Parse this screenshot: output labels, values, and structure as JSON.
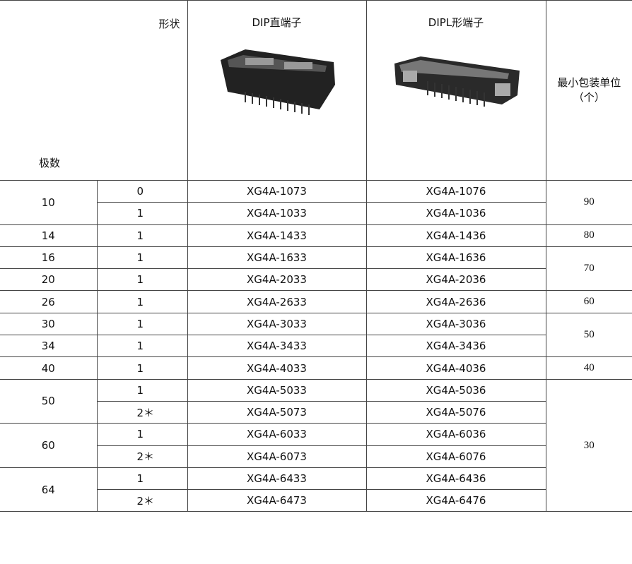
{
  "header": {
    "shape": "形状",
    "poles": "极数",
    "dip": "DIP直端子",
    "dipl": "DIPL形端子",
    "packing_unit": "最小包装单位",
    "packing_unit_suffix": "（个）"
  },
  "packing_groups": [
    {
      "unit": "90",
      "pole_groups": [
        {
          "poles": "10",
          "variants": [
            {
              "shape": "0",
              "dip": "XG4A-1073",
              "dipl": "XG4A-1076"
            },
            {
              "shape": "1",
              "dip": "XG4A-1033",
              "dipl": "XG4A-1036"
            }
          ]
        }
      ]
    },
    {
      "unit": "80",
      "pole_groups": [
        {
          "poles": "14",
          "variants": [
            {
              "shape": "1",
              "dip": "XG4A-1433",
              "dipl": "XG4A-1436"
            }
          ]
        }
      ]
    },
    {
      "unit": "70",
      "pole_groups": [
        {
          "poles": "16",
          "variants": [
            {
              "shape": "1",
              "dip": "XG4A-1633",
              "dipl": "XG4A-1636"
            }
          ]
        },
        {
          "poles": "20",
          "variants": [
            {
              "shape": "1",
              "dip": "XG4A-2033",
              "dipl": "XG4A-2036"
            }
          ]
        }
      ]
    },
    {
      "unit": "60",
      "pole_groups": [
        {
          "poles": "26",
          "variants": [
            {
              "shape": "1",
              "dip": "XG4A-2633",
              "dipl": "XG4A-2636"
            }
          ]
        }
      ]
    },
    {
      "unit": "50",
      "pole_groups": [
        {
          "poles": "30",
          "variants": [
            {
              "shape": "1",
              "dip": "XG4A-3033",
              "dipl": "XG4A-3036"
            }
          ]
        },
        {
          "poles": "34",
          "variants": [
            {
              "shape": "1",
              "dip": "XG4A-3433",
              "dipl": "XG4A-3436"
            }
          ]
        }
      ]
    },
    {
      "unit": "40",
      "pole_groups": [
        {
          "poles": "40",
          "variants": [
            {
              "shape": "1",
              "dip": "XG4A-4033",
              "dipl": "XG4A-4036"
            }
          ]
        }
      ]
    },
    {
      "unit": "30",
      "pole_groups": [
        {
          "poles": "50",
          "variants": [
            {
              "shape": "1",
              "dip": "XG4A-5033",
              "dipl": "XG4A-5036"
            },
            {
              "shape": "2＊",
              "dip": "XG4A-5073",
              "dipl": "XG4A-5076"
            }
          ]
        },
        {
          "poles": "60",
          "variants": [
            {
              "shape": "1",
              "dip": "XG4A-6033",
              "dipl": "XG4A-6036"
            },
            {
              "shape": "2＊",
              "dip": "XG4A-6073",
              "dipl": "XG4A-6076"
            }
          ]
        },
        {
          "poles": "64",
          "variants": [
            {
              "shape": "1",
              "dip": "XG4A-6433",
              "dipl": "XG4A-6436"
            },
            {
              "shape": "2＊",
              "dip": "XG4A-6473",
              "dipl": "XG4A-6476"
            }
          ]
        }
      ]
    }
  ]
}
